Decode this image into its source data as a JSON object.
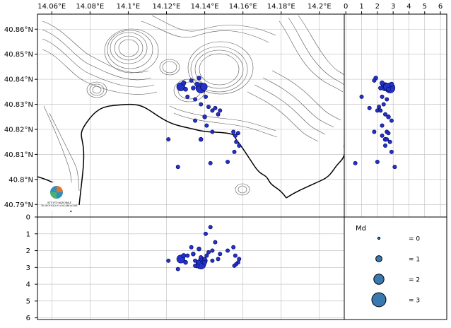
{
  "map": {
    "lon_ticks": [
      "14.06°E",
      "14.08°E",
      "14.1°E",
      "14.12°E",
      "14.14°E",
      "14.16°E",
      "14.18°E",
      "14.2°E"
    ],
    "lat_ticks": [
      "40.86°N",
      "40.85°N",
      "40.84°N",
      "40.83°N",
      "40.82°N",
      "40.81°N",
      "40.8°N",
      "40.79°N"
    ],
    "logo_text": [
      "ISTITUTO NAZIONALE",
      "DI GEOFISICA E VULCANOLOGIA"
    ]
  },
  "depth_right": {
    "ticks": [
      "0",
      "1",
      "2",
      "3",
      "4",
      "5",
      "6"
    ]
  },
  "depth_bottom": {
    "ticks": [
      "0",
      "1",
      "2",
      "3",
      "4",
      "5",
      "6"
    ]
  },
  "legend": {
    "title": "Md",
    "entries": [
      {
        "label": "= 0",
        "md": 0
      },
      {
        "label": "= 1",
        "md": 1
      },
      {
        "label": "= 2",
        "md": 2
      },
      {
        "label": "= 3",
        "md": 3
      }
    ]
  },
  "colors": {
    "event_fill": "#2233cc",
    "event_stroke": "#0a0a5a",
    "legend_fill": "#3a78b0",
    "coast": "#000000",
    "contour": "#555555",
    "grid": "#bbbbbb"
  },
  "chart_data": {
    "type": "scatter",
    "x_unit": "degrees E",
    "y_unit": "degrees N",
    "depth_unit": "km",
    "events": [
      {
        "lon": 14.1275,
        "lat": 40.837,
        "depth": 2.5,
        "md": 1.6
      },
      {
        "lon": 14.129,
        "lat": 40.8385,
        "depth": 2.3,
        "md": 0.6
      },
      {
        "lon": 14.13,
        "lat": 40.836,
        "depth": 2.7,
        "md": 0.5
      },
      {
        "lon": 14.133,
        "lat": 40.8395,
        "depth": 1.8,
        "md": 0.4
      },
      {
        "lon": 14.134,
        "lat": 40.8365,
        "depth": 2.2,
        "md": 0.5
      },
      {
        "lon": 14.136,
        "lat": 40.838,
        "depth": 2.9,
        "md": 0.6
      },
      {
        "lon": 14.138,
        "lat": 40.8365,
        "depth": 2.8,
        "md": 2.1
      },
      {
        "lon": 14.1395,
        "lat": 40.837,
        "depth": 2.6,
        "md": 1.3
      },
      {
        "lon": 14.137,
        "lat": 40.8405,
        "depth": 1.9,
        "md": 0.5
      },
      {
        "lon": 14.131,
        "lat": 40.833,
        "depth": 2.3,
        "md": 0.4
      },
      {
        "lon": 14.135,
        "lat": 40.832,
        "depth": 2.6,
        "md": 0.4
      },
      {
        "lon": 14.138,
        "lat": 40.83,
        "depth": 2.4,
        "md": 0.4
      },
      {
        "lon": 14.1405,
        "lat": 40.833,
        "depth": 1.0,
        "md": 0.4
      },
      {
        "lon": 14.142,
        "lat": 40.829,
        "depth": 2.1,
        "md": 0.4
      },
      {
        "lon": 14.144,
        "lat": 40.8275,
        "depth": 2.0,
        "md": 0.4
      },
      {
        "lon": 14.1455,
        "lat": 40.8285,
        "depth": 1.5,
        "md": 0.4
      },
      {
        "lon": 14.147,
        "lat": 40.826,
        "depth": 2.5,
        "md": 0.4
      },
      {
        "lon": 14.148,
        "lat": 40.8275,
        "depth": 2.2,
        "md": 0.4
      },
      {
        "lon": 14.14,
        "lat": 40.825,
        "depth": 2.7,
        "md": 0.5
      },
      {
        "lon": 14.135,
        "lat": 40.8235,
        "depth": 2.9,
        "md": 0.4
      },
      {
        "lon": 14.141,
        "lat": 40.8215,
        "depth": 2.3,
        "md": 0.4
      },
      {
        "lon": 14.144,
        "lat": 40.819,
        "depth": 2.6,
        "md": 0.4
      },
      {
        "lon": 14.138,
        "lat": 40.816,
        "depth": 2.5,
        "md": 0.5
      },
      {
        "lon": 14.155,
        "lat": 40.819,
        "depth": 1.8,
        "md": 0.4
      },
      {
        "lon": 14.156,
        "lat": 40.8175,
        "depth": 2.3,
        "md": 0.4
      },
      {
        "lon": 14.1575,
        "lat": 40.8185,
        "depth": 2.7,
        "md": 0.4
      },
      {
        "lon": 14.1565,
        "lat": 40.815,
        "depth": 2.8,
        "md": 0.4
      },
      {
        "lon": 14.1555,
        "lat": 40.811,
        "depth": 2.9,
        "md": 0.4
      },
      {
        "lon": 14.158,
        "lat": 40.8135,
        "depth": 2.5,
        "md": 0.4
      },
      {
        "lon": 14.121,
        "lat": 40.816,
        "depth": 2.6,
        "md": 0.4
      },
      {
        "lon": 14.126,
        "lat": 40.805,
        "depth": 3.1,
        "md": 0.4
      },
      {
        "lon": 14.143,
        "lat": 40.8065,
        "depth": 0.6,
        "md": 0.4
      },
      {
        "lon": 14.152,
        "lat": 40.807,
        "depth": 2.0,
        "md": 0.4
      }
    ]
  }
}
